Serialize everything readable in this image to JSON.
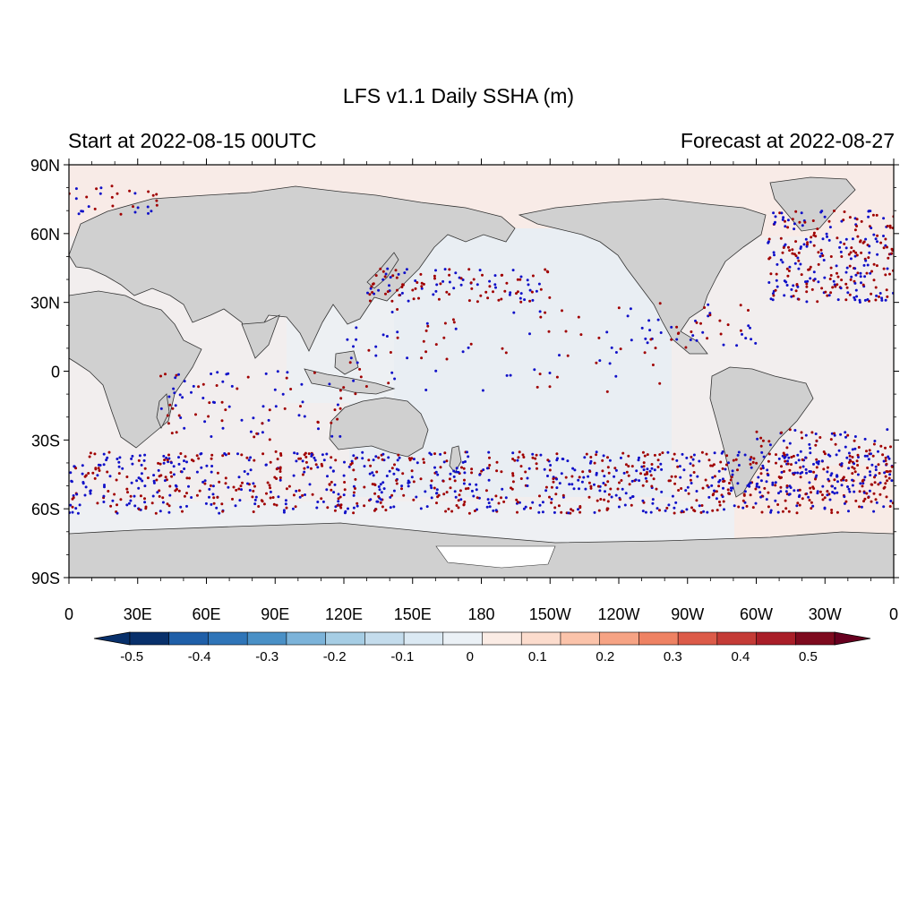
{
  "title": "LFS v1.1 Daily SSHA (m)",
  "subtitle_left": "Start at 2022-08-15 00UTC",
  "subtitle_right": "Forecast at 2022-08-27",
  "map": {
    "projection": "cylindrical-equidistant",
    "lon_range": [
      0,
      360
    ],
    "lat_range": [
      -90,
      90
    ],
    "land_color": "#d0d0d0",
    "antarctic_ice_color": "#ffffff",
    "obs_colors": {
      "positive": "#a00000",
      "negative": "#1010c8"
    }
  },
  "axes": {
    "lat_ticks": [
      {
        "value": 90,
        "label": "90N"
      },
      {
        "value": 60,
        "label": "60N"
      },
      {
        "value": 30,
        "label": "30N"
      },
      {
        "value": 0,
        "label": "0"
      },
      {
        "value": -30,
        "label": "30S"
      },
      {
        "value": -60,
        "label": "60S"
      },
      {
        "value": -90,
        "label": "90S"
      }
    ],
    "lon_ticks": [
      {
        "value": 0,
        "label": "0"
      },
      {
        "value": 30,
        "label": "30E"
      },
      {
        "value": 60,
        "label": "60E"
      },
      {
        "value": 90,
        "label": "90E"
      },
      {
        "value": 120,
        "label": "120E"
      },
      {
        "value": 150,
        "label": "150E"
      },
      {
        "value": 180,
        "label": "180"
      },
      {
        "value": 210,
        "label": "150W"
      },
      {
        "value": 240,
        "label": "120W"
      },
      {
        "value": 270,
        "label": "90W"
      },
      {
        "value": 300,
        "label": "60W"
      },
      {
        "value": 330,
        "label": "30W"
      },
      {
        "value": 360,
        "label": "0"
      }
    ]
  },
  "colorbar": {
    "labels": [
      "-0.5",
      "-0.4",
      "-0.3",
      "-0.2",
      "-0.1",
      "0",
      "0.1",
      "0.2",
      "0.3",
      "0.4",
      "0.5"
    ],
    "colors": [
      "#08306b",
      "#1f5fa8",
      "#2f75b8",
      "#4a90c6",
      "#7cb3d9",
      "#a6cde4",
      "#c4dcec",
      "#dbe9f3",
      "#ebf1f6",
      "#fbece5",
      "#fcdccd",
      "#fbc3aa",
      "#f6a384",
      "#ee8263",
      "#dc5b49",
      "#c43b36",
      "#a91e28",
      "#7e0a1e"
    ],
    "end_colors": [
      "#08306b",
      "#67001f"
    ]
  }
}
